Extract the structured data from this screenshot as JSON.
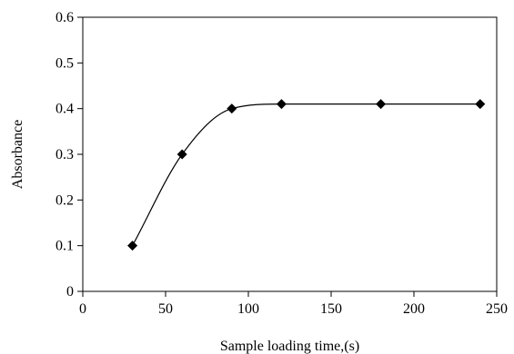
{
  "chart_data": {
    "type": "line",
    "title": "",
    "xlabel": "Sample loading time,(s)",
    "ylabel": "Absorbance",
    "xlim": [
      0,
      250
    ],
    "ylim": [
      0,
      0.6
    ],
    "x_ticks": [
      0,
      50,
      100,
      150,
      200,
      250
    ],
    "y_ticks": [
      0,
      0.1,
      0.2,
      0.3,
      0.4,
      0.5,
      0.6
    ],
    "x_tick_labels": [
      "0",
      "50",
      "100",
      "150",
      "200",
      "250"
    ],
    "y_tick_labels": [
      "0",
      "0.1",
      "0.2",
      "0.3",
      "0.4",
      "0.5",
      "0.6"
    ],
    "grid": false,
    "legend": "none",
    "marker": "diamond",
    "line_style": "smoothed",
    "color": "#000000",
    "series": [
      {
        "x": [
          30,
          60,
          90,
          120,
          180,
          240
        ],
        "y": [
          0.1,
          0.3,
          0.4,
          0.41,
          0.41,
          0.41
        ]
      }
    ]
  }
}
